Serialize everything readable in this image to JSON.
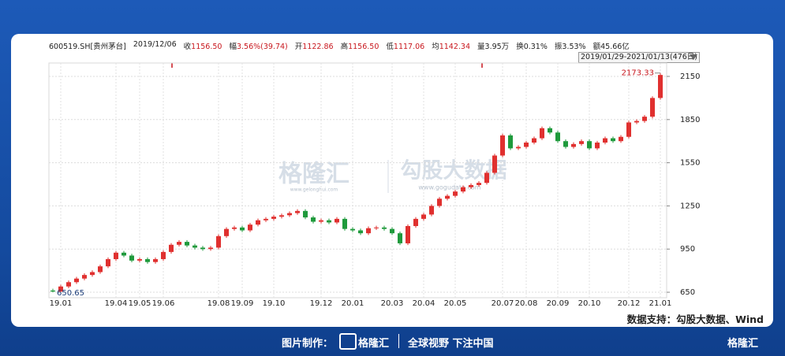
{
  "header": {
    "code": "600519.SH[贵州茅台]",
    "date": "2019/12/06",
    "items": [
      {
        "label": "收",
        "value": "1156.50"
      },
      {
        "label": "幅",
        "value": "3.56%(39.74)"
      },
      {
        "label": "开",
        "value": "1122.86"
      },
      {
        "label": "高",
        "value": "1156.50"
      },
      {
        "label": "低",
        "value": "1117.06"
      },
      {
        "label": "均",
        "value": "1142.34"
      },
      {
        "label": "量",
        "value": "3.95万"
      },
      {
        "label": "换",
        "value": "0.31%"
      },
      {
        "label": "振",
        "value": "3.53%"
      },
      {
        "label": "额",
        "value": "45.66亿"
      }
    ],
    "range": "2019/01/29-2021/01/13(476日)"
  },
  "chart_data": {
    "type": "candlestick",
    "up_color": "#e0302f",
    "down_color": "#1f9a3c",
    "grid": true,
    "categories": [
      null,
      "19.01",
      null,
      null,
      null,
      null,
      null,
      null,
      "19.04",
      null,
      null,
      "19.05",
      null,
      null,
      "19.06",
      null,
      null,
      null,
      null,
      null,
      null,
      "19.08",
      null,
      null,
      "19.09",
      null,
      null,
      null,
      "19.10",
      null,
      null,
      null,
      null,
      null,
      "19.12",
      null,
      null,
      null,
      "20.01",
      null,
      null,
      null,
      null,
      "20.03",
      null,
      null,
      null,
      "20.04",
      null,
      null,
      null,
      "20.05",
      null,
      null,
      null,
      null,
      null,
      "20.07",
      null,
      null,
      "20.08",
      null,
      null,
      null,
      "20.09",
      null,
      null,
      null,
      "20.10",
      null,
      null,
      null,
      null,
      "20.12",
      null,
      null,
      null,
      "21.01"
    ],
    "candles": {
      "open": [
        662,
        655,
        690,
        720,
        745,
        770,
        790,
        830,
        880,
        925,
        905,
        870,
        880,
        860,
        880,
        930,
        980,
        1000,
        975,
        960,
        950,
        960,
        1040,
        1090,
        1100,
        1080,
        1120,
        1150,
        1160,
        1175,
        1185,
        1200,
        1215,
        1170,
        1140,
        1150,
        1135,
        1160,
        1090,
        1080,
        1060,
        1095,
        1100,
        1090,
        1060,
        990,
        1110,
        1160,
        1190,
        1250,
        1300,
        1320,
        1350,
        1380,
        1395,
        1410,
        1480,
        1600,
        1740,
        1650,
        1660,
        1690,
        1720,
        1790,
        1760,
        1700,
        1660,
        1680,
        1700,
        1650,
        1690,
        1720,
        1700,
        1730,
        1830,
        1840,
        1870,
        2000
      ],
      "high": [
        674,
        702,
        732,
        757,
        782,
        802,
        842,
        892,
        937,
        937,
        917,
        892,
        892,
        892,
        942,
        992,
        1012,
        1012,
        987,
        972,
        972,
        1052,
        1102,
        1112,
        1112,
        1132,
        1162,
        1172,
        1187,
        1197,
        1212,
        1227,
        1227,
        1182,
        1162,
        1162,
        1172,
        1172,
        1102,
        1092,
        1107,
        1112,
        1112,
        1102,
        1072,
        1122,
        1172,
        1202,
        1262,
        1312,
        1332,
        1362,
        1392,
        1407,
        1422,
        1492,
        1612,
        1752,
        1752,
        1672,
        1702,
        1732,
        1802,
        1802,
        1772,
        1712,
        1692,
        1712,
        1712,
        1702,
        1732,
        1732,
        1742,
        1842,
        1852,
        1882,
        2012,
        2173.33
      ],
      "low": [
        650.65,
        652,
        678,
        708,
        733,
        758,
        778,
        818,
        868,
        893,
        858,
        858,
        848,
        848,
        868,
        918,
        968,
        963,
        948,
        938,
        938,
        948,
        1028,
        1078,
        1068,
        1068,
        1108,
        1138,
        1148,
        1163,
        1173,
        1188,
        1158,
        1128,
        1128,
        1123,
        1123,
        1078,
        1068,
        1048,
        1048,
        1083,
        1078,
        1048,
        978,
        978,
        1098,
        1148,
        1178,
        1238,
        1288,
        1308,
        1338,
        1368,
        1383,
        1398,
        1468,
        1588,
        1638,
        1638,
        1648,
        1678,
        1708,
        1748,
        1688,
        1648,
        1648,
        1668,
        1638,
        1638,
        1678,
        1688,
        1688,
        1718,
        1818,
        1828,
        1858,
        1988
      ],
      "close": [
        655,
        690,
        720,
        745,
        770,
        790,
        830,
        880,
        925,
        905,
        870,
        880,
        860,
        880,
        930,
        980,
        1000,
        975,
        960,
        950,
        960,
        1040,
        1090,
        1100,
        1080,
        1120,
        1150,
        1160,
        1175,
        1185,
        1200,
        1215,
        1170,
        1140,
        1150,
        1135,
        1160,
        1090,
        1080,
        1060,
        1095,
        1100,
        1090,
        1060,
        990,
        1110,
        1160,
        1190,
        1250,
        1300,
        1320,
        1350,
        1380,
        1395,
        1410,
        1480,
        1600,
        1740,
        1650,
        1660,
        1690,
        1720,
        1790,
        1760,
        1700,
        1660,
        1680,
        1700,
        1650,
        1690,
        1720,
        1700,
        1730,
        1830,
        1840,
        1870,
        2000,
        2160
      ]
    },
    "ylim": [
      612,
      2243
    ],
    "yticks": [
      650,
      950,
      1250,
      1550,
      1850,
      2150
    ]
  },
  "watermarks": {
    "brand": "格隆汇",
    "brand_url": "www.gelonghui.com",
    "data": "勾股大数据",
    "data_url": "www.gogudata.com"
  },
  "source": "数据支持：勾股大数据、Wind",
  "footer": {
    "made_by": "图片制作：",
    "brand": "格隆汇",
    "slogan": "全球视野 下注中国",
    "corner": "格隆汇"
  }
}
